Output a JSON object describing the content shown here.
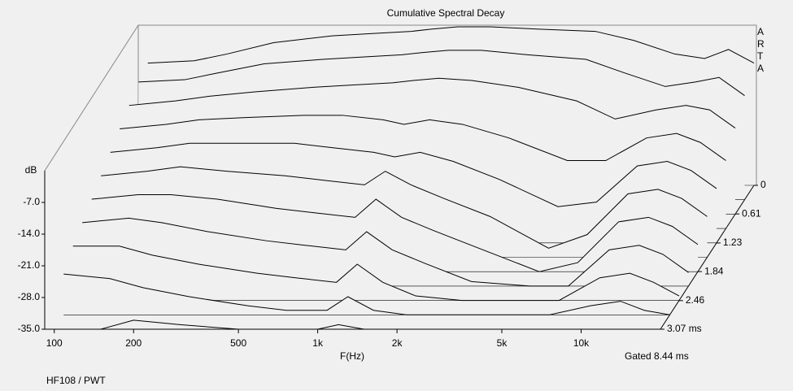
{
  "chart_data": {
    "type": "waterfall",
    "title": "Cumulative Spectral Decay",
    "ylabel": "dB",
    "xlabel": "F(Hz)",
    "note": "Gated 8.44 ms",
    "footer": "HF108 / PWT",
    "brand": "ARTA",
    "xscale": "log",
    "xlim": [
      92,
      20000
    ],
    "xticks": [
      100,
      200,
      500,
      {
        "value": 1000,
        "label": "1k"
      },
      {
        "value": 2000,
        "label": "2k"
      },
      {
        "value": 5000,
        "label": "5k"
      },
      {
        "value": 10000,
        "label": "10k"
      }
    ],
    "ylim": [
      -35,
      0
    ],
    "yticks": [
      {
        "value": -7,
        "label": "-7.0"
      },
      {
        "value": -14,
        "label": "-14.0"
      },
      {
        "value": -21,
        "label": "-21.0"
      },
      {
        "value": -28,
        "label": "-28.0"
      },
      {
        "value": -35,
        "label": "-35.0"
      }
    ],
    "tlim": [
      0,
      3.07
    ],
    "tticks": [
      0,
      0.61,
      1.23,
      1.84,
      2.46,
      {
        "value": 3.07,
        "label": "3.07 ms"
      }
    ],
    "color": "#000000",
    "x": [
      100,
      150,
      200,
      300,
      500,
      700,
      1000,
      1200,
      1500,
      2000,
      3000,
      5000,
      7000,
      10000,
      13000,
      16000,
      20000
    ],
    "slices": [
      {
        "time": 0,
        "values": [
          -8,
          -7.5,
          -6,
          -3.5,
          -2,
          -1.5,
          -1,
          -0.5,
          0,
          0,
          -0.5,
          -1,
          -3,
          -6,
          -7,
          -5,
          -8
        ]
      },
      {
        "time": 0.307,
        "values": [
          -9,
          -8.5,
          -7,
          -5,
          -4,
          -3.5,
          -3,
          -2.5,
          -2,
          -2,
          -3,
          -4,
          -7,
          -10,
          -9,
          -8,
          -12
        ]
      },
      {
        "time": 0.614,
        "values": [
          -11,
          -10,
          -9,
          -8,
          -7,
          -6.5,
          -6,
          -5.5,
          -5,
          -5.5,
          -7,
          -10,
          -14,
          -12,
          -11,
          -12,
          -16
        ]
      },
      {
        "time": 0.921,
        "values": [
          -13,
          -12,
          -11,
          -10.5,
          -10,
          -10,
          -11,
          -12,
          -11,
          -12,
          -15,
          -20,
          -20,
          -15,
          -14,
          -16,
          -20
        ]
      },
      {
        "time": 1.228,
        "values": [
          -15,
          -14,
          -13,
          -13,
          -13,
          -14,
          -15,
          -16,
          -15,
          -17,
          -21,
          -27,
          -26,
          -18,
          -17,
          -19,
          -23
        ]
      },
      {
        "time": 1.535,
        "values": [
          -17,
          -16,
          -15,
          -16,
          -17,
          -18,
          -19,
          -16,
          -19,
          -22,
          -26,
          -33,
          -30,
          -21,
          -20,
          -22,
          -26
        ]
      },
      {
        "time": 1.842,
        "values": [
          -19,
          -18,
          -18,
          -19,
          -21,
          -22,
          -23,
          -19,
          -23,
          -26,
          -30,
          -35,
          -33,
          -24,
          -23,
          -25,
          -29
        ]
      },
      {
        "time": 2.149,
        "values": [
          -21,
          -20,
          -21,
          -23,
          -25,
          -26,
          -27,
          -23,
          -27,
          -30,
          -34,
          -35,
          -35,
          -27,
          -26,
          -28,
          -32
        ]
      },
      {
        "time": 2.456,
        "values": [
          -23,
          -23,
          -25,
          -27,
          -29,
          -30,
          -31,
          -27,
          -31,
          -34,
          -35,
          -35,
          -35,
          -30,
          -29,
          -31,
          -34
        ]
      },
      {
        "time": 2.763,
        "values": [
          -26,
          -27,
          -29,
          -31,
          -33,
          -34,
          -34,
          -31,
          -34,
          -35,
          -35,
          -35,
          -35,
          -33,
          -32,
          -34,
          -35
        ]
      },
      {
        "time": 3.07,
        "values": [
          -35,
          -35,
          -33,
          -34,
          -35,
          -35,
          -35,
          -34,
          -35,
          -35,
          -35,
          -35,
          -35,
          -35,
          -35,
          -35,
          -35
        ]
      }
    ]
  }
}
